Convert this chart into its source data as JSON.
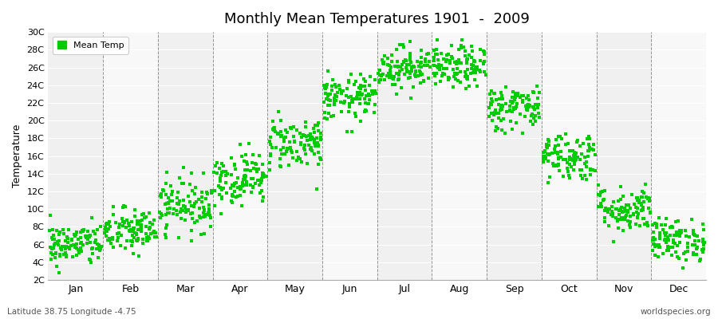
{
  "title": "Monthly Mean Temperatures 1901  -  2009",
  "ylabel": "Temperature",
  "subtitle_left": "Latitude 38.75 Longitude -4.75",
  "subtitle_right": "worldspecies.org",
  "legend_label": "Mean Temp",
  "marker_color": "#00CC00",
  "background_color": "#FFFFFF",
  "plot_bg_even": "#F0F0F0",
  "plot_bg_odd": "#F8F8F8",
  "ylim": [
    2,
    30
  ],
  "ytick_labels": [
    "2C",
    "4C",
    "6C",
    "8C",
    "10C",
    "12C",
    "14C",
    "16C",
    "18C",
    "20C",
    "22C",
    "24C",
    "26C",
    "28C",
    "30C"
  ],
  "ytick_vals": [
    2,
    4,
    6,
    8,
    10,
    12,
    14,
    16,
    18,
    20,
    22,
    24,
    26,
    28,
    30
  ],
  "months": [
    "Jan",
    "Feb",
    "Mar",
    "Apr",
    "May",
    "Jun",
    "Jul",
    "Aug",
    "Sep",
    "Oct",
    "Nov",
    "Dec"
  ],
  "mean_temps": [
    6.0,
    7.5,
    10.5,
    13.5,
    17.5,
    22.5,
    26.0,
    26.0,
    21.5,
    16.0,
    10.0,
    6.5
  ],
  "std_temps": [
    1.2,
    1.3,
    1.5,
    1.5,
    1.5,
    1.3,
    1.2,
    1.2,
    1.3,
    1.4,
    1.3,
    1.2
  ],
  "n_years": 109,
  "seed": 42,
  "figwidth": 9.0,
  "figheight": 4.0,
  "dpi": 100
}
